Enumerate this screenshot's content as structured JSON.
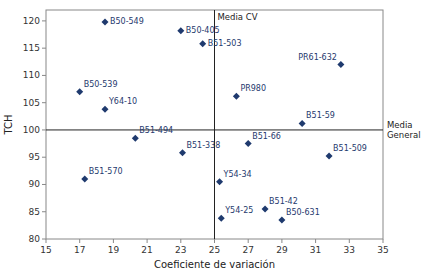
{
  "chart_data": {
    "type": "scatter",
    "x_label": "Coeficiente de variación",
    "y_label": "TCH",
    "x": [
      18.5,
      23.0,
      24.3,
      32.5,
      17.0,
      18.5,
      26.3,
      30.2,
      20.3,
      23.1,
      27.0,
      31.8,
      17.3,
      25.3,
      28.0,
      25.4,
      29.0
    ],
    "values": [
      119.8,
      118.2,
      115.8,
      112.0,
      107.0,
      103.8,
      106.2,
      101.2,
      98.5,
      95.8,
      97.5,
      95.2,
      91.0,
      90.5,
      85.5,
      83.8,
      83.5
    ],
    "point_labels": [
      "B50-549",
      "B50-405",
      "B51-503",
      "PR61-632",
      "B50-539",
      "Y64-10",
      "PR980",
      "B51-59",
      "B51-494",
      "B51-338",
      "B51-66",
      "B51-509",
      "B51-570",
      "Y54-34",
      "B51-42",
      "Y54-25",
      "B50-631"
    ],
    "color": "#1f3a6e",
    "marker": "diamond",
    "reference_lines": [
      {
        "axis": "x",
        "value": 25.0,
        "label": "Media CV"
      },
      {
        "axis": "y",
        "value": 100.0,
        "label": "Media\nGeneral"
      }
    ],
    "xlim": [
      15,
      35
    ],
    "ylim": [
      80,
      122
    ],
    "xticks": [
      15,
      17,
      19,
      21,
      23,
      25,
      27,
      29,
      31,
      33,
      35
    ],
    "yticks": [
      80,
      85,
      90,
      95,
      100,
      105,
      110,
      115,
      120
    ],
    "grid": false
  }
}
